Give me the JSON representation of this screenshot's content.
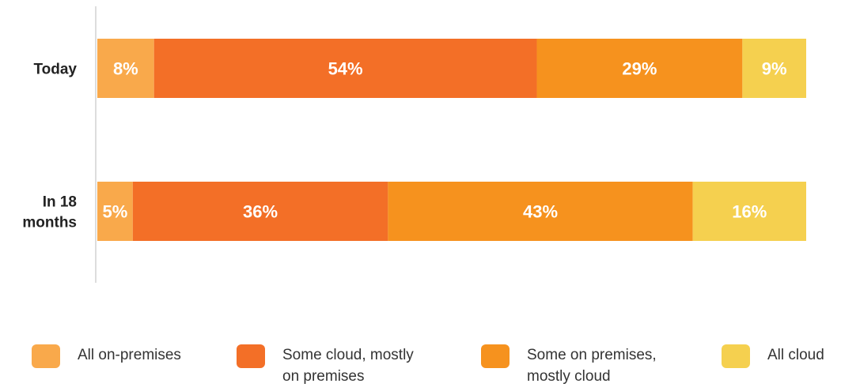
{
  "chart_data": {
    "type": "bar",
    "orientation": "horizontal",
    "stacked": true,
    "categories": [
      "Today",
      "In 18 months"
    ],
    "series": [
      {
        "name": "All on-premises",
        "values": [
          8,
          5
        ],
        "color": "#F9A94B"
      },
      {
        "name": "Some cloud, mostly on premises",
        "values": [
          54,
          36
        ],
        "color": "#F36F27"
      },
      {
        "name": "Some on premises, mostly cloud",
        "values": [
          29,
          43
        ],
        "color": "#F6921E"
      },
      {
        "name": "All cloud",
        "values": [
          9,
          16
        ],
        "color": "#F5D04F"
      }
    ],
    "value_labels": [
      [
        "8%",
        "54%",
        "29%",
        "9%"
      ],
      [
        "5%",
        "36%",
        "43%",
        "16%"
      ]
    ],
    "legend_items": [
      "All on-premises",
      "Some cloud, mostly\non premises",
      "Some on premises,\nmostly cloud",
      "All cloud"
    ],
    "xlim": [
      0,
      100
    ],
    "grid": false,
    "legend_position": "bottom"
  }
}
